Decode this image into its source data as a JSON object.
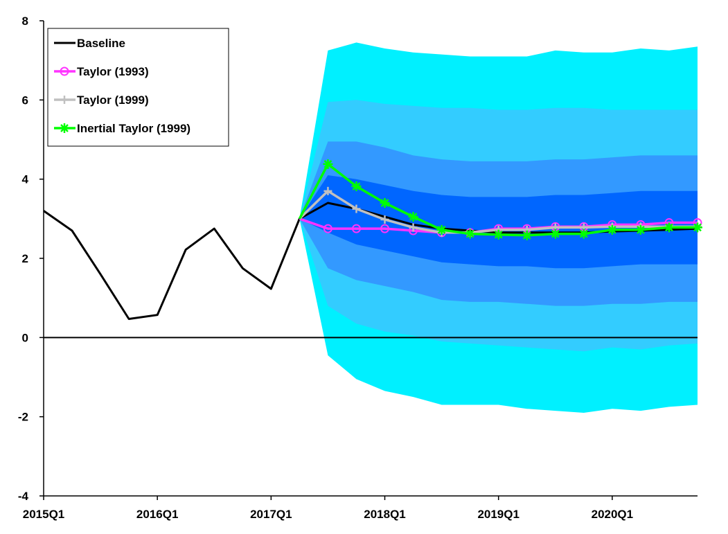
{
  "chart_data": {
    "type": "line",
    "title": "",
    "xlabel": "",
    "ylabel": "",
    "ylim": [
      -4,
      8
    ],
    "yticks": [
      -4,
      -2,
      0,
      2,
      4,
      6,
      8
    ],
    "grid": false,
    "legend_position": "top-left",
    "x": [
      "2015Q1",
      "2015Q2",
      "2015Q3",
      "2015Q4",
      "2016Q1",
      "2016Q2",
      "2016Q3",
      "2016Q4",
      "2017Q1",
      "2017Q2",
      "2017Q3",
      "2017Q4",
      "2018Q1",
      "2018Q2",
      "2018Q3",
      "2018Q4",
      "2019Q1",
      "2019Q2",
      "2019Q3",
      "2019Q4",
      "2020Q1",
      "2020Q2",
      "2020Q3",
      "2020Q4"
    ],
    "xtick_labels": [
      "2015Q1",
      "2016Q1",
      "2017Q1",
      "2018Q1",
      "2019Q1",
      "2020Q1"
    ],
    "zero_line": 0,
    "fan_bands": [
      {
        "name": "outer",
        "color": "#00f0ff",
        "upper": [
          null,
          null,
          null,
          null,
          null,
          null,
          null,
          null,
          null,
          3.0,
          7.25,
          7.45,
          7.3,
          7.2,
          7.15,
          7.1,
          7.1,
          7.1,
          7.25,
          7.2,
          7.2,
          7.3,
          7.25,
          7.35
        ],
        "lower": [
          null,
          null,
          null,
          null,
          null,
          null,
          null,
          null,
          null,
          3.0,
          -0.45,
          -1.05,
          -1.35,
          -1.5,
          -1.7,
          -1.7,
          -1.7,
          -1.8,
          -1.85,
          -1.9,
          -1.8,
          -1.85,
          -1.75,
          -1.7
        ]
      },
      {
        "name": "mid-outer",
        "color": "#33ccff",
        "upper": [
          null,
          null,
          null,
          null,
          null,
          null,
          null,
          null,
          null,
          3.0,
          5.95,
          6.0,
          5.9,
          5.85,
          5.8,
          5.8,
          5.75,
          5.75,
          5.8,
          5.8,
          5.75,
          5.75,
          5.75,
          5.75
        ],
        "lower": [
          null,
          null,
          null,
          null,
          null,
          null,
          null,
          null,
          null,
          3.0,
          0.8,
          0.35,
          0.15,
          0.05,
          -0.1,
          -0.15,
          -0.2,
          -0.25,
          -0.3,
          -0.35,
          -0.25,
          -0.3,
          -0.2,
          -0.15
        ]
      },
      {
        "name": "mid-inner",
        "color": "#3399ff",
        "upper": [
          null,
          null,
          null,
          null,
          null,
          null,
          null,
          null,
          null,
          3.0,
          4.95,
          4.95,
          4.8,
          4.6,
          4.5,
          4.45,
          4.45,
          4.45,
          4.5,
          4.5,
          4.55,
          4.6,
          4.6,
          4.6
        ],
        "lower": [
          null,
          null,
          null,
          null,
          null,
          null,
          null,
          null,
          null,
          3.0,
          1.75,
          1.45,
          1.3,
          1.15,
          0.95,
          0.9,
          0.9,
          0.85,
          0.8,
          0.8,
          0.85,
          0.85,
          0.9,
          0.9
        ]
      },
      {
        "name": "inner",
        "color": "#0066ff",
        "upper": [
          null,
          null,
          null,
          null,
          null,
          null,
          null,
          null,
          null,
          3.0,
          4.1,
          4.0,
          3.85,
          3.7,
          3.6,
          3.55,
          3.55,
          3.55,
          3.6,
          3.6,
          3.65,
          3.7,
          3.7,
          3.7
        ],
        "lower": [
          null,
          null,
          null,
          null,
          null,
          null,
          null,
          null,
          null,
          3.0,
          2.65,
          2.35,
          2.2,
          2.05,
          1.9,
          1.85,
          1.8,
          1.8,
          1.75,
          1.75,
          1.8,
          1.85,
          1.85,
          1.85
        ]
      }
    ],
    "series": [
      {
        "name": "Baseline",
        "color": "#000000",
        "marker": "none",
        "values": [
          3.2,
          2.7,
          1.6,
          0.47,
          0.57,
          2.22,
          2.75,
          1.75,
          1.23,
          3.0,
          3.4,
          3.25,
          3.05,
          2.85,
          2.75,
          2.7,
          2.65,
          2.65,
          2.65,
          2.65,
          2.68,
          2.7,
          2.72,
          2.75
        ]
      },
      {
        "name": "Taylor (1993)",
        "color": "#ff33ff",
        "marker": "circle",
        "values": [
          null,
          null,
          null,
          null,
          null,
          null,
          null,
          null,
          null,
          3.0,
          2.75,
          2.75,
          2.75,
          2.7,
          2.65,
          2.65,
          2.75,
          2.75,
          2.8,
          2.8,
          2.85,
          2.85,
          2.9,
          2.9
        ]
      },
      {
        "name": "Taylor (1999)",
        "color": "#c0c0c0",
        "marker": "plus",
        "values": [
          null,
          null,
          null,
          null,
          null,
          null,
          null,
          null,
          null,
          3.0,
          3.7,
          3.25,
          2.98,
          2.78,
          2.65,
          2.65,
          2.72,
          2.72,
          2.78,
          2.78,
          2.8,
          2.8,
          2.8,
          2.8
        ]
      },
      {
        "name": "Inertial Taylor (1999)",
        "color": "#00ff00",
        "marker": "star",
        "values": [
          null,
          null,
          null,
          null,
          null,
          null,
          null,
          null,
          null,
          3.0,
          4.38,
          3.82,
          3.4,
          3.05,
          2.72,
          2.62,
          2.6,
          2.58,
          2.62,
          2.62,
          2.72,
          2.72,
          2.78,
          2.78
        ]
      }
    ]
  }
}
